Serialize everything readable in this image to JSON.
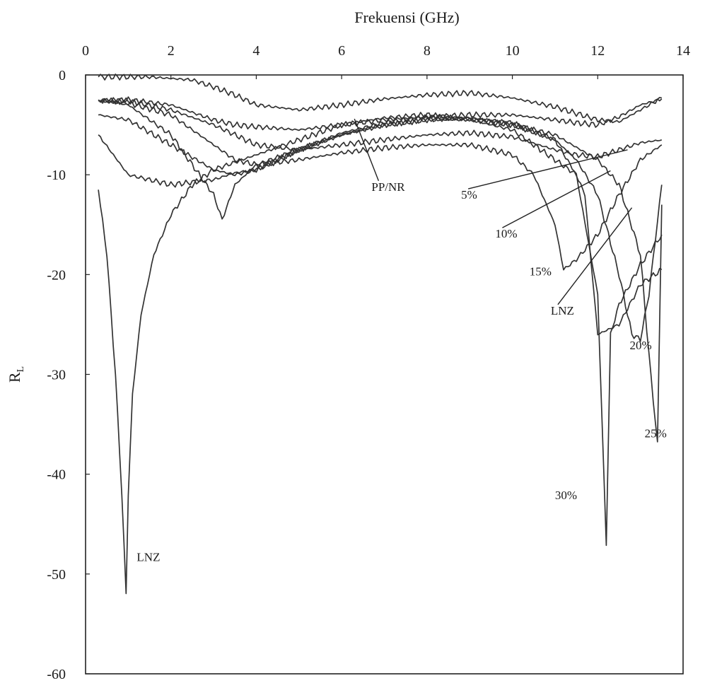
{
  "chart_data": {
    "type": "line",
    "title": "Frekuensi (GHz)",
    "xlabel": "Frekuensi (GHz)",
    "ylabel_main": "R",
    "ylabel_sub": "L",
    "xlim": [
      0,
      14
    ],
    "ylim": [
      -60,
      0
    ],
    "x_axis_position": "top",
    "grid": false,
    "xticks": [
      "0",
      "2",
      "4",
      "6",
      "8",
      "10",
      "12",
      "14"
    ],
    "yticks": [
      "0",
      "-10",
      "-20",
      "-30",
      "-40",
      "-50",
      "-60"
    ],
    "series": [
      {
        "name": "PP/NR",
        "x": [
          0.3,
          1.5,
          2.5,
          3.0,
          3.5,
          4.0,
          5.0,
          6.0,
          7.0,
          8.0,
          9.0,
          10.0,
          11.0,
          12.0,
          12.5,
          13.0,
          13.5
        ],
        "y": [
          -0.2,
          -0.2,
          -0.5,
          -1.2,
          -2.0,
          -3.0,
          -3.5,
          -3.0,
          -2.4,
          -2.0,
          -1.8,
          -2.3,
          -3.2,
          -4.5,
          -4.7,
          -3.5,
          -2.3
        ]
      },
      {
        "name": "5%",
        "x": [
          0.3,
          1.0,
          2.0,
          3.0,
          3.5,
          4.0,
          5.0,
          6.0,
          7.0,
          8.0,
          9.0,
          10.0,
          11.0,
          11.5,
          12.0,
          12.5,
          13.0,
          13.5
        ],
        "y": [
          -2.6,
          -2.5,
          -3.0,
          -4.5,
          -5.0,
          -5.2,
          -5.5,
          -5.0,
          -4.5,
          -4.2,
          -4.0,
          -4.0,
          -4.5,
          -4.8,
          -5.0,
          -4.2,
          -3.0,
          -2.4
        ]
      },
      {
        "name": "10%",
        "x": [
          0.3,
          1.0,
          2.0,
          3.0,
          3.5,
          4.0,
          5.0,
          6.0,
          7.0,
          8.0,
          9.0,
          10.0,
          11.0,
          11.5,
          12.0,
          12.5,
          13.0,
          13.5
        ],
        "y": [
          -2.5,
          -2.6,
          -3.5,
          -5.0,
          -6.0,
          -7.0,
          -7.5,
          -7.0,
          -6.5,
          -6.0,
          -5.8,
          -6.2,
          -7.5,
          -8.0,
          -8.2,
          -7.5,
          -6.8,
          -6.5
        ]
      },
      {
        "name": "15%",
        "x": [
          0.3,
          1.0,
          2.0,
          3.0,
          3.5,
          4.0,
          5.0,
          6.0,
          7.0,
          8.0,
          9.0,
          10.0,
          10.5,
          11.0,
          11.2,
          11.5,
          12.0,
          12.5,
          13.0,
          13.5
        ],
        "y": [
          -2.6,
          -2.8,
          -4.0,
          -7.0,
          -8.5,
          -9.0,
          -8.5,
          -7.8,
          -7.3,
          -7.0,
          -7.0,
          -8.0,
          -10.0,
          -15.0,
          -19.5,
          -18.5,
          -16.0,
          -12.0,
          -8.5,
          -7.0
        ]
      },
      {
        "name": "20%",
        "x": [
          0.3,
          1.0,
          2.0,
          3.0,
          3.5,
          4.0,
          5.0,
          6.0,
          7.0,
          8.0,
          9.0,
          10.0,
          11.0,
          11.5,
          12.0,
          12.5,
          12.8,
          13.0,
          13.2,
          13.5
        ],
        "y": [
          -4.0,
          -4.5,
          -7.0,
          -9.5,
          -10.0,
          -9.5,
          -7.5,
          -6.0,
          -5.0,
          -4.5,
          -4.5,
          -5.0,
          -6.5,
          -8.5,
          -12.0,
          -20.0,
          -26.0,
          -26.5,
          -22.0,
          -11.0
        ]
      },
      {
        "name": "25%",
        "x": [
          0.3,
          1.0,
          2.0,
          3.0,
          3.5,
          4.0,
          5.0,
          6.0,
          7.0,
          8.0,
          9.0,
          10.0,
          11.0,
          12.0,
          12.5,
          13.0,
          13.2,
          13.4,
          13.5
        ],
        "y": [
          -6.0,
          -10.0,
          -11.0,
          -10.5,
          -9.8,
          -9.5,
          -7.5,
          -5.8,
          -4.8,
          -4.2,
          -4.3,
          -5.0,
          -6.0,
          -8.5,
          -11.0,
          -18.0,
          -28.0,
          -37.0,
          -13.0
        ]
      },
      {
        "name": "30%",
        "x": [
          0.3,
          1.0,
          2.0,
          3.0,
          3.2,
          3.5,
          4.0,
          5.0,
          6.0,
          7.0,
          8.0,
          9.0,
          10.0,
          11.0,
          11.5,
          12.0,
          12.2,
          12.3,
          12.5,
          13.0,
          13.5
        ],
        "y": [
          -2.5,
          -3.0,
          -6.0,
          -12.0,
          -14.5,
          -11.0,
          -9.0,
          -7.5,
          -6.0,
          -5.0,
          -4.5,
          -4.3,
          -4.8,
          -6.5,
          -10.0,
          -22.0,
          -47.0,
          -26.0,
          -23.0,
          -19.0,
          -16.0
        ]
      },
      {
        "name": "LNZ",
        "x": [
          0.3,
          0.5,
          0.7,
          0.85,
          0.95,
          1.0,
          1.1,
          1.3,
          1.6,
          2.0,
          2.5,
          3.0,
          4.0,
          5.0,
          6.0,
          7.0,
          8.0,
          9.0,
          10.0,
          10.5,
          11.0,
          11.5,
          11.7,
          12.0,
          12.5,
          13.0,
          13.5
        ],
        "y": [
          -11.5,
          -18.0,
          -30.0,
          -42.0,
          -52.0,
          -42.0,
          -32.0,
          -24.0,
          -18.0,
          -14.0,
          -11.0,
          -9.5,
          -8.0,
          -6.5,
          -5.0,
          -4.3,
          -4.0,
          -4.5,
          -5.5,
          -7.0,
          -8.5,
          -10.0,
          -12.0,
          -26.0,
          -25.0,
          -21.0,
          -19.5
        ]
      }
    ],
    "annotations": [
      {
        "text": "PP/NR",
        "x": 6.7,
        "y": -11.6,
        "pointer_to_x": 6.3,
        "pointer_to_y": -4.4
      },
      {
        "text": "5%",
        "x": 8.8,
        "y": -12.4,
        "pointer_to_x": 12.7,
        "pointer_to_y": -7.5
      },
      {
        "text": "10%",
        "x": 9.6,
        "y": -16.3,
        "pointer_to_x": 12.3,
        "pointer_to_y": -9.6
      },
      {
        "text": "15%",
        "x": 10.4,
        "y": -20.1,
        "pointer_to_x": null,
        "pointer_to_y": null
      },
      {
        "text": "LNZ",
        "x": 10.9,
        "y": -24.0,
        "pointer_to_x": 12.8,
        "pointer_to_y": -13.3
      },
      {
        "text": "20%",
        "x": 12.75,
        "y": -27.5,
        "pointer_to_x": null,
        "pointer_to_y": null
      },
      {
        "text": "25%",
        "x": 13.1,
        "y": -36.3,
        "pointer_to_x": null,
        "pointer_to_y": null
      },
      {
        "text": "30%",
        "x": 11.0,
        "y": -42.5,
        "pointer_to_x": null,
        "pointer_to_y": null
      },
      {
        "text": "LNZ",
        "x": 1.2,
        "y": -48.7,
        "pointer_to_x": null,
        "pointer_to_y": null
      }
    ]
  }
}
